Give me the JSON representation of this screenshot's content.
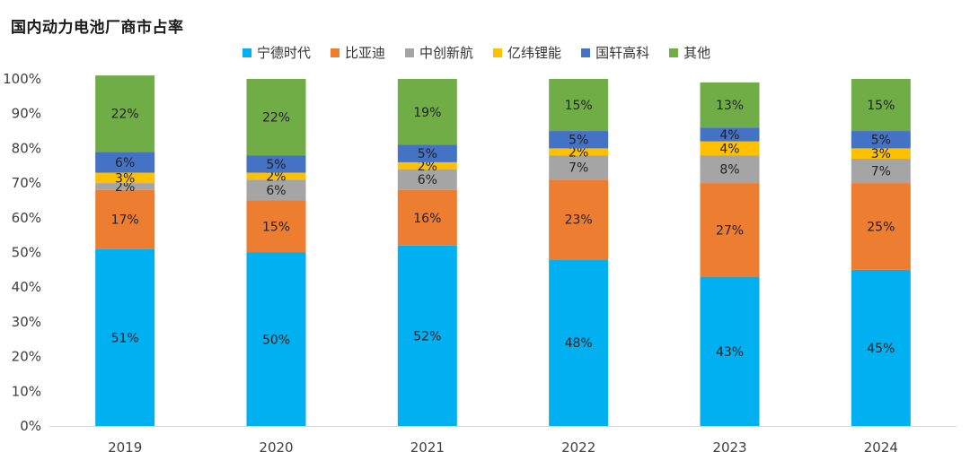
{
  "chart_data": {
    "type": "bar",
    "stacked": true,
    "title": "国内动力电池厂商市占率",
    "categories": [
      "2019",
      "2020",
      "2021",
      "2022",
      "2023",
      "2024"
    ],
    "ylim": [
      0,
      100
    ],
    "yticks": [
      "0%",
      "10%",
      "20%",
      "30%",
      "40%",
      "50%",
      "60%",
      "70%",
      "80%",
      "90%",
      "100%"
    ],
    "legend_position": "top",
    "series": [
      {
        "name": "宁德时代",
        "color": "#00b0f0",
        "values": [
          51,
          50,
          52,
          48,
          43,
          45
        ],
        "labels": [
          "51%",
          "50%",
          "52%",
          "48%",
          "43%",
          "45%"
        ]
      },
      {
        "name": "比亚迪",
        "color": "#ed7d31",
        "values": [
          17,
          15,
          16,
          23,
          27,
          25
        ],
        "labels": [
          "17%",
          "15%",
          "16%",
          "23%",
          "27%",
          "25%"
        ]
      },
      {
        "name": "中创新航",
        "color": "#a5a5a5",
        "values": [
          2,
          6,
          6,
          7,
          8,
          7
        ],
        "labels": [
          "2%",
          "6%",
          "6%",
          "7%",
          "8%",
          "7%"
        ]
      },
      {
        "name": "亿纬锂能",
        "color": "#ffc000",
        "values": [
          3,
          2,
          2,
          2,
          4,
          3
        ],
        "labels": [
          "3%",
          "2%",
          "2%",
          "2%",
          "4%",
          "3%"
        ]
      },
      {
        "name": "国轩高科",
        "color": "#4472c4",
        "values": [
          6,
          5,
          5,
          5,
          4,
          5
        ],
        "labels": [
          "6%",
          "5%",
          "5%",
          "5%",
          "4%",
          "5%"
        ]
      },
      {
        "name": "其他",
        "color": "#70ad47",
        "values": [
          22,
          22,
          19,
          15,
          13,
          15
        ],
        "labels": [
          "22%",
          "22%",
          "19%",
          "15%",
          "13%",
          "15%"
        ]
      }
    ]
  }
}
